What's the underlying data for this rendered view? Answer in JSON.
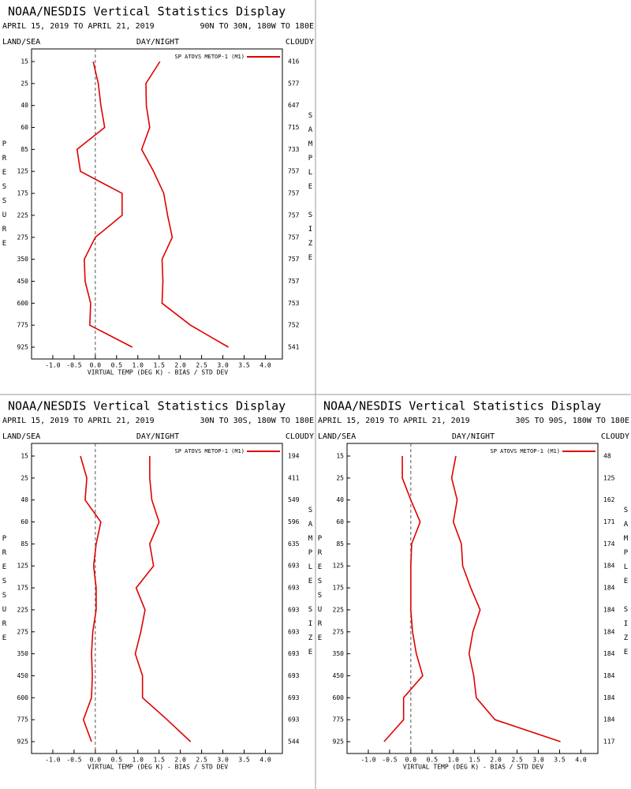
{
  "chart_data": [
    {
      "type": "line",
      "title": "NOAA/NESDIS Vertical Statistics Display",
      "subtitle": "APRIL 15, 2019 TO APRIL 21, 2019",
      "region": "90N TO 30N, 180W TO 180E",
      "land_sea": "LAND/SEA",
      "day_night": "DAY/NIGHT",
      "cloudy": "CLOUDY",
      "legend": "SP ATOVS METOP-1 (M1)",
      "ylabel": "PRESSURE",
      "y2label": "SAMPLE SIZE",
      "xlabel": "VIRTUAL TEMP (DEG K) - BIAS / STD DEV",
      "categories": [
        15,
        25,
        40,
        60,
        85,
        125,
        175,
        225,
        275,
        350,
        450,
        600,
        775,
        925
      ],
      "sample_size": [
        416,
        577,
        647,
        715,
        733,
        757,
        757,
        757,
        757,
        757,
        757,
        753,
        752,
        541
      ],
      "series": [
        {
          "color": "#e00000",
          "values": [
            -0.05,
            0.07,
            0.13,
            0.22,
            -0.43,
            -0.35,
            0.63,
            0.63,
            0.0,
            -0.26,
            -0.24,
            -0.11,
            -0.13,
            0.87
          ]
        },
        {
          "color": "#e00000",
          "values": [
            1.52,
            1.19,
            1.2,
            1.28,
            1.09,
            1.37,
            1.61,
            1.7,
            1.81,
            1.57,
            1.59,
            1.57,
            2.24,
            3.13
          ]
        }
      ],
      "xlim": [
        -1.5,
        4.4
      ],
      "xticks": [
        {
          "value": -1,
          "label": "-1.0"
        },
        -0.5,
        {
          "value": 0,
          "label": "0.0"
        },
        0.5,
        {
          "value": 1,
          "label": "1.0"
        },
        1.5,
        {
          "value": 2,
          "label": "2.0"
        },
        2.5,
        {
          "value": 3,
          "label": "3.0"
        },
        3.5,
        {
          "value": 4,
          "label": "4.0"
        }
      ]
    },
    {
      "type": "line",
      "title": "NOAA/NESDIS Vertical Statistics Display",
      "subtitle": "APRIL 15, 2019 TO APRIL 21, 2019",
      "region": "30N TO 30S, 180W TO 180E",
      "land_sea": "LAND/SEA",
      "day_night": "DAY/NIGHT",
      "cloudy": "CLOUDY",
      "legend": "SP ATOVS METOP-1 (M1)",
      "ylabel": "PRESSURE",
      "y2label": "SAMPLE SIZE",
      "xlabel": "VIRTUAL TEMP (DEG K) - BIAS / STD DEV",
      "categories": [
        15,
        25,
        40,
        60,
        85,
        125,
        175,
        225,
        275,
        350,
        450,
        600,
        775,
        925
      ],
      "sample_size": [
        194,
        411,
        549,
        596,
        635,
        693,
        693,
        693,
        693,
        693,
        693,
        693,
        693,
        544
      ],
      "series": [
        {
          "color": "#e00000",
          "values": [
            -0.35,
            -0.2,
            -0.24,
            0.13,
            0.02,
            -0.04,
            0.02,
            0.02,
            -0.06,
            -0.09,
            -0.07,
            -0.09,
            -0.28,
            -0.09
          ]
        },
        {
          "color": "#e00000",
          "values": [
            1.28,
            1.28,
            1.33,
            1.5,
            1.28,
            1.37,
            0.96,
            1.17,
            1.07,
            0.94,
            1.11,
            1.11,
            1.69,
            2.24
          ]
        }
      ],
      "xlim": [
        -1.5,
        4.4
      ],
      "xticks": [
        {
          "value": -1,
          "label": "-1.0"
        },
        -0.5,
        {
          "value": 0,
          "label": "0.0"
        },
        0.5,
        {
          "value": 1,
          "label": "1.0"
        },
        1.5,
        {
          "value": 2,
          "label": "2.0"
        },
        2.5,
        {
          "value": 3,
          "label": "3.0"
        },
        3.5,
        {
          "value": 4,
          "label": "4.0"
        }
      ]
    },
    {
      "type": "line",
      "title": "NOAA/NESDIS Vertical Statistics Display",
      "subtitle": "APRIL 15, 2019 TO APRIL 21, 2019",
      "region": "30S TO 90S, 180W TO 180E",
      "land_sea": "LAND/SEA",
      "day_night": "DAY/NIGHT",
      "cloudy": "CLOUDY",
      "legend": "SP ATOVS METOP-1 (M1)",
      "ylabel": "PRESSURE",
      "y2label": "SAMPLE SIZE",
      "xlabel": "VIRTUAL TEMP (DEG K) - BIAS / STD DEV",
      "categories": [
        15,
        25,
        40,
        60,
        85,
        125,
        175,
        225,
        275,
        350,
        450,
        600,
        775,
        925
      ],
      "sample_size": [
        48,
        125,
        162,
        171,
        174,
        184,
        184,
        184,
        184,
        184,
        184,
        184,
        184,
        117
      ],
      "series": [
        {
          "color": "#e00000",
          "values": [
            -0.2,
            -0.2,
            0.0,
            0.22,
            0.02,
            0.0,
            0.0,
            0.0,
            0.04,
            0.13,
            0.28,
            -0.17,
            -0.17,
            -0.63
          ]
        },
        {
          "color": "#e00000",
          "values": [
            1.06,
            0.96,
            1.09,
            1.0,
            1.19,
            1.22,
            1.41,
            1.63,
            1.46,
            1.37,
            1.48,
            1.54,
            1.98,
            3.52
          ]
        }
      ],
      "xlim": [
        -1.5,
        4.4
      ],
      "xticks": [
        {
          "value": -1,
          "label": "-1.0"
        },
        -0.5,
        {
          "value": 0,
          "label": "0.0"
        },
        0.5,
        {
          "value": 1,
          "label": "1.0"
        },
        1.5,
        {
          "value": 2,
          "label": "2.0"
        },
        2.5,
        {
          "value": 3,
          "label": "3.0"
        },
        3.5,
        {
          "value": 4,
          "label": "4.0"
        }
      ]
    }
  ]
}
